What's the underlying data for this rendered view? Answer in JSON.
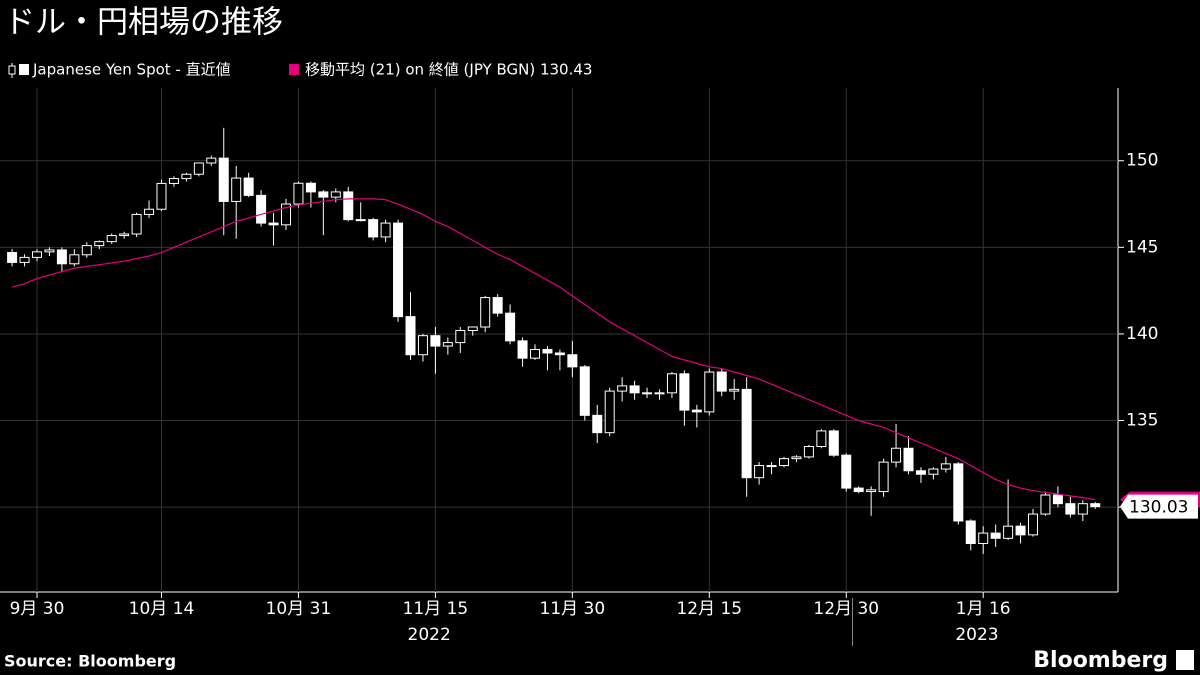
{
  "chart_data": {
    "type": "candlestick",
    "title": "ドル・円相場の推移",
    "source": "Source: Bloomberg",
    "logo": "Bloomberg",
    "categories": [
      null,
      null,
      "9月 30",
      null,
      null,
      null,
      null,
      null,
      null,
      null,
      null,
      null,
      "10月 14",
      null,
      null,
      null,
      null,
      null,
      null,
      null,
      null,
      null,
      null,
      "10月 31",
      null,
      null,
      null,
      null,
      null,
      null,
      null,
      null,
      null,
      null,
      "11月 15",
      null,
      null,
      null,
      null,
      null,
      null,
      null,
      null,
      null,
      null,
      "11月 30",
      null,
      null,
      null,
      null,
      null,
      null,
      null,
      null,
      null,
      null,
      "12月 15",
      null,
      null,
      null,
      null,
      null,
      null,
      null,
      null,
      null,
      null,
      "12月 30",
      null,
      null,
      null,
      null,
      null,
      null,
      null,
      null,
      null,
      null,
      "1月 16",
      null,
      null,
      null,
      null,
      null,
      null,
      null,
      null,
      null
    ],
    "years": [
      {
        "label": "2022",
        "start": 0
      },
      {
        "label": "2023",
        "start": 68
      }
    ],
    "ylim": [
      125.1,
      154.2
    ],
    "yticks": [
      130,
      135,
      140,
      145,
      150
    ],
    "grid": true,
    "series": [
      {
        "name": "Japanese Yen Spot - 直近値",
        "type": "candlestick",
        "up_color": "#000000",
        "down_color": "#ffffff",
        "edge_color": "#ffffff",
        "open": [
          144.7,
          144.13,
          144.42,
          144.74,
          144.85,
          144.05,
          144.57,
          145.1,
          145.33,
          145.68,
          145.77,
          146.9,
          147.2,
          148.69,
          148.97,
          149.22,
          149.87,
          150.15,
          147.65,
          149.0,
          148.0,
          146.4,
          146.3,
          147.5,
          148.7,
          148.2,
          147.9,
          148.2,
          146.6,
          146.6,
          145.6,
          146.4,
          141.0,
          138.8,
          139.9,
          139.3,
          139.5,
          140.2,
          140.4,
          142.1,
          141.2,
          139.6,
          138.6,
          139.1,
          138.9,
          138.8,
          138.1,
          135.3,
          134.3,
          136.7,
          137.0,
          136.6,
          136.6,
          136.6,
          137.7,
          135.6,
          135.5,
          137.8,
          136.7,
          136.8,
          131.7,
          132.4,
          132.4,
          132.8,
          132.9,
          133.5,
          134.4,
          133.0,
          131.1,
          130.9,
          130.9,
          132.6,
          133.4,
          132.1,
          131.9,
          132.2,
          132.5,
          129.2,
          127.9,
          128.5,
          128.2,
          128.9,
          128.4,
          129.6,
          130.7,
          130.2,
          129.6,
          130.2
        ],
        "high": [
          144.9,
          144.6,
          144.9,
          145.0,
          145.0,
          144.9,
          145.3,
          145.4,
          145.8,
          145.9,
          147.0,
          147.7,
          148.9,
          149.1,
          149.3,
          149.9,
          150.3,
          151.9,
          149.7,
          149.3,
          148.3,
          147.0,
          147.8,
          148.8,
          148.8,
          148.3,
          148.4,
          148.5,
          147.6,
          146.7,
          146.6,
          146.6,
          142.4,
          140.0,
          140.4,
          139.8,
          140.4,
          140.4,
          142.2,
          142.3,
          141.7,
          139.8,
          139.4,
          139.3,
          139.1,
          139.6,
          138.2,
          135.9,
          136.9,
          137.5,
          137.3,
          136.9,
          136.8,
          137.8,
          137.9,
          135.9,
          138.0,
          138.0,
          137.4,
          137.5,
          132.6,
          132.6,
          132.9,
          133.0,
          133.6,
          134.5,
          134.5,
          133.1,
          131.2,
          131.2,
          132.8,
          134.8,
          134.1,
          132.3,
          132.3,
          132.9,
          132.6,
          129.3,
          128.9,
          129.0,
          131.6,
          129.1,
          129.9,
          130.9,
          131.2,
          130.6,
          130.4,
          130.3
        ],
        "low": [
          143.9,
          143.9,
          144.2,
          144.5,
          143.6,
          143.9,
          144.4,
          144.9,
          145.2,
          145.5,
          145.6,
          146.7,
          147.1,
          148.5,
          148.8,
          149.1,
          149.7,
          145.7,
          145.5,
          147.9,
          146.2,
          145.1,
          146.0,
          147.3,
          147.3,
          145.7,
          147.6,
          146.5,
          146.5,
          145.4,
          145.3,
          140.7,
          138.5,
          138.4,
          137.7,
          138.8,
          138.9,
          139.9,
          140.1,
          141.0,
          139.4,
          138.1,
          138.5,
          137.9,
          137.9,
          137.5,
          135.0,
          133.7,
          134.1,
          136.1,
          136.2,
          136.3,
          136.2,
          136.3,
          134.7,
          134.6,
          135.3,
          136.4,
          136.2,
          130.6,
          131.3,
          131.9,
          132.3,
          132.6,
          132.8,
          133.4,
          132.9,
          130.9,
          130.8,
          129.5,
          130.6,
          132.3,
          131.9,
          131.4,
          131.6,
          132.0,
          129.0,
          127.5,
          127.3,
          127.7,
          128.1,
          127.9,
          128.3,
          129.5,
          130.0,
          129.4,
          129.2,
          129.9
        ],
        "close": [
          144.13,
          144.42,
          144.74,
          144.85,
          144.05,
          144.57,
          145.1,
          145.33,
          145.68,
          145.77,
          146.9,
          147.2,
          148.69,
          148.97,
          149.22,
          149.87,
          150.15,
          147.65,
          149.0,
          148.0,
          146.4,
          146.3,
          147.5,
          148.7,
          148.2,
          147.9,
          148.2,
          146.6,
          146.6,
          145.6,
          146.4,
          141.0,
          138.8,
          139.9,
          139.3,
          139.5,
          140.2,
          140.4,
          142.1,
          141.2,
          139.6,
          138.6,
          139.1,
          138.9,
          138.8,
          138.1,
          135.3,
          134.3,
          136.7,
          137.0,
          136.6,
          136.6,
          136.6,
          137.7,
          135.6,
          135.5,
          137.8,
          136.7,
          136.8,
          131.7,
          132.4,
          132.4,
          132.8,
          132.9,
          133.5,
          134.4,
          133.0,
          131.1,
          130.9,
          131.0,
          132.6,
          133.4,
          132.1,
          131.9,
          132.2,
          132.5,
          129.2,
          127.9,
          128.5,
          128.2,
          128.9,
          128.4,
          129.6,
          130.7,
          130.2,
          129.6,
          130.2,
          130.03
        ]
      },
      {
        "name": "移動平均 (21) on 終値 (JPY BGN) 130.43",
        "type": "line",
        "color": "#e6007e",
        "values": [
          142.7,
          142.9,
          143.2,
          143.4,
          143.6,
          143.8,
          143.9,
          144.0,
          144.1,
          144.2,
          144.35,
          144.5,
          144.7,
          145.0,
          145.3,
          145.6,
          145.9,
          146.2,
          146.5,
          146.7,
          146.9,
          147.1,
          147.3,
          147.45,
          147.55,
          147.65,
          147.75,
          147.8,
          147.8,
          147.8,
          147.75,
          147.5,
          147.2,
          146.9,
          146.5,
          146.2,
          145.8,
          145.4,
          145.0,
          144.6,
          144.3,
          143.9,
          143.5,
          143.1,
          142.7,
          142.2,
          141.7,
          141.2,
          140.7,
          140.3,
          139.9,
          139.5,
          139.1,
          138.7,
          138.5,
          138.3,
          138.1,
          138.0,
          137.8,
          137.6,
          137.4,
          137.1,
          136.8,
          136.5,
          136.2,
          135.9,
          135.6,
          135.3,
          135.0,
          134.8,
          134.6,
          134.3,
          134.0,
          133.7,
          133.4,
          133.1,
          132.8,
          132.4,
          132.0,
          131.6,
          131.3,
          131.1,
          130.95,
          130.85,
          130.75,
          130.65,
          130.55,
          130.43
        ]
      }
    ]
  }
}
